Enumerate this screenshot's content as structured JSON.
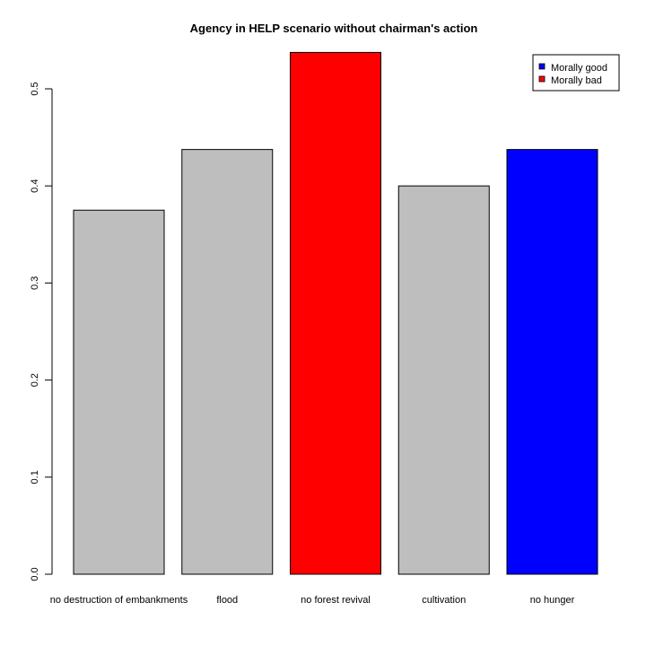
{
  "chart_data": {
    "type": "bar",
    "title": "Agency in HELP scenario without chairman's action",
    "xlabel": "",
    "ylabel": "",
    "categories": [
      "no destruction of embankments",
      "flood",
      "no forest revival",
      "cultivation",
      "no hunger"
    ],
    "values": [
      0.375,
      0.4375,
      0.5375,
      0.4,
      0.4375
    ],
    "bar_colors": [
      "#bebebe",
      "#bebebe",
      "#ff0000",
      "#bebebe",
      "#0000ff"
    ],
    "ylim": [
      0,
      0.5
    ],
    "yticks": [
      "0.0",
      "0.1",
      "0.2",
      "0.3",
      "0.4",
      "0.5"
    ],
    "grid": false,
    "legend": {
      "placement": "top-right",
      "entries": [
        {
          "label": "Morally good",
          "color": "#0000ff"
        },
        {
          "label": "Morally bad",
          "color": "#ff0000"
        }
      ]
    }
  }
}
